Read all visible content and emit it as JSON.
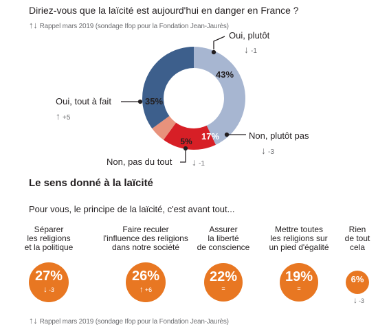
{
  "donut": {
    "question": "Diriez-vous que la laïcité est aujourd'hui en danger en France ?",
    "recall": "Rappel mars 2019 (sondage Ifop pour la Fondation Jean-Jaurès)",
    "slices": [
      {
        "label": "Oui, plutôt",
        "pct_text": "43%",
        "change": "-1",
        "arrow": "down"
      },
      {
        "label": "Non, plutôt pas",
        "pct_text": "17%",
        "change": "-3",
        "arrow": "down"
      },
      {
        "label": "Non, pas du tout",
        "pct_text": "5%",
        "change": "-1",
        "arrow": "down"
      },
      {
        "label": "Oui, tout à fait",
        "pct_text": "35%",
        "change": "+5",
        "arrow": "up"
      }
    ]
  },
  "section": {
    "title": "Le sens donné à la laïcité",
    "question": "Pour vous, le principe de la laïcité, c'est avant tout...",
    "items": [
      {
        "caption": "Séparer\nles religions\net la politique",
        "pct_text": "27%",
        "change": "-3",
        "arrow": "down"
      },
      {
        "caption": "Faire reculer\nl'influence des religions\ndans notre société",
        "pct_text": "26%",
        "change": "+6",
        "arrow": "up"
      },
      {
        "caption": "Assurer\nla liberté\nde conscience",
        "pct_text": "22%",
        "change": "=",
        "arrow": "none"
      },
      {
        "caption": "Mettre toutes\nles religions sur\nun pied d'égalité",
        "pct_text": "19%",
        "change": "=",
        "arrow": "none"
      },
      {
        "caption": "Rien\nde tout\ncela",
        "pct_text": "6%",
        "change": "-3",
        "arrow": "down"
      }
    ],
    "recall": "Rappel mars 2019 (sondage Ifop pour la Fondation Jean-Jaurès)"
  },
  "icons": {
    "up": "↑",
    "down": "↓",
    "both": "↑↓"
  },
  "chart_data": [
    {
      "type": "pie",
      "title": "Diriez-vous que la laïcité est aujourd'hui en danger en France ?",
      "categories": [
        "Oui, plutôt",
        "Non, plutôt pas",
        "Non, pas du tout",
        "Oui, tout à fait"
      ],
      "values": [
        43,
        17,
        5,
        35
      ],
      "changes_vs_2019": [
        "-1",
        "-3",
        "-1",
        "+5"
      ],
      "colors": [
        "#a7b6d1",
        "#d71f26",
        "#e8927c",
        "#3d5f8c"
      ],
      "donut": true
    },
    {
      "type": "bar",
      "title": "Le sens donné à la laïcité",
      "subtitle": "Pour vous, le principe de la laïcité, c'est avant tout...",
      "categories": [
        "Séparer les religions et la politique",
        "Faire reculer l'influence des religions dans notre société",
        "Assurer la liberté de conscience",
        "Mettre toutes les religions sur un pied d'égalité",
        "Rien de tout cela"
      ],
      "values": [
        27,
        26,
        22,
        19,
        6
      ],
      "changes_vs_2019": [
        "-3",
        "+6",
        "=",
        "=",
        "-3"
      ],
      "color": "#e87722"
    }
  ]
}
